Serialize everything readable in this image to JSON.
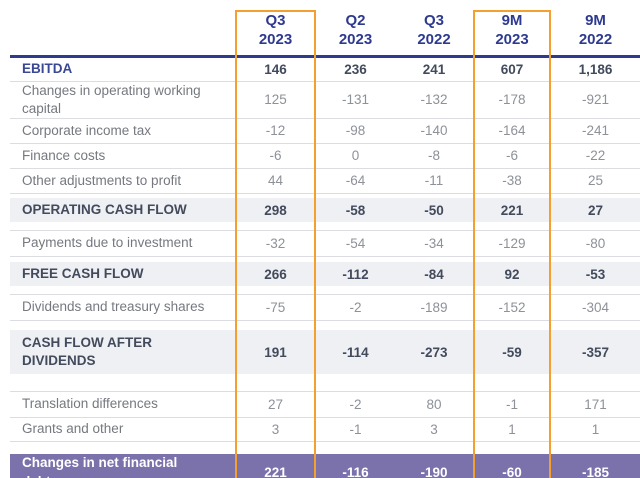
{
  "chart_data": {
    "type": "table",
    "title": "",
    "columns": [
      {
        "period": "Q3",
        "year": "2023",
        "highlighted": true
      },
      {
        "period": "Q2",
        "year": "2023",
        "highlighted": false
      },
      {
        "period": "Q3",
        "year": "2022",
        "highlighted": false
      },
      {
        "period": "9M",
        "year": "2023",
        "highlighted": true
      },
      {
        "period": "9M",
        "year": "2022",
        "highlighted": false
      }
    ],
    "rows": [
      {
        "label": "EBITDA",
        "values": [
          "146",
          "236",
          "241",
          "607",
          "1,186"
        ],
        "emphasis": "ebitda"
      },
      {
        "label": "Changes in operating working capital",
        "values": [
          "125",
          "-131",
          "-132",
          "-178",
          "-921"
        ],
        "emphasis": "normal"
      },
      {
        "label": "Corporate income tax",
        "values": [
          "-12",
          "-98",
          "-140",
          "-164",
          "-241"
        ],
        "emphasis": "normal"
      },
      {
        "label": "Finance costs",
        "values": [
          "-6",
          "0",
          "-8",
          "-6",
          "-22"
        ],
        "emphasis": "normal"
      },
      {
        "label": "Other adjustments to profit",
        "values": [
          "44",
          "-64",
          "-11",
          "-38",
          "25"
        ],
        "emphasis": "normal"
      },
      {
        "label": "OPERATING CASH FLOW",
        "values": [
          "298",
          "-58",
          "-50",
          "221",
          "27"
        ],
        "emphasis": "section"
      },
      {
        "label": "Payments due to investment",
        "values": [
          "-32",
          "-54",
          "-34",
          "-129",
          "-80"
        ],
        "emphasis": "normal"
      },
      {
        "label": "FREE CASH FLOW",
        "values": [
          "266",
          "-112",
          "-84",
          "92",
          "-53"
        ],
        "emphasis": "section"
      },
      {
        "label": "Dividends and treasury shares",
        "values": [
          "-75",
          "-2",
          "-189",
          "-152",
          "-304"
        ],
        "emphasis": "normal"
      },
      {
        "label": "CASH FLOW AFTER DIVIDENDS",
        "values": [
          "191",
          "-114",
          "-273",
          "-59",
          "-357"
        ],
        "emphasis": "section"
      },
      {
        "label": "Translation differences",
        "values": [
          "27",
          "-2",
          "80",
          "-1",
          "171"
        ],
        "emphasis": "normal"
      },
      {
        "label": "Grants and other",
        "values": [
          "3",
          "-1",
          "3",
          "1",
          "1"
        ],
        "emphasis": "normal"
      },
      {
        "label": "Changes in net financial debt",
        "values": [
          "221",
          "-116",
          "-190",
          "-60",
          "-185"
        ],
        "emphasis": "total"
      }
    ]
  },
  "colors": {
    "navy": "#2e3a8f",
    "navy_label": "#3a4795",
    "orange": "#f5a02e",
    "band_bg": "#eef0f4",
    "purple": "#7b72ab",
    "purple_edge": "#c1bbd8",
    "divider": "#dbdde2",
    "label_gray": "#75797f",
    "value_gray": "#8d9198",
    "strong": "#424a5c"
  }
}
